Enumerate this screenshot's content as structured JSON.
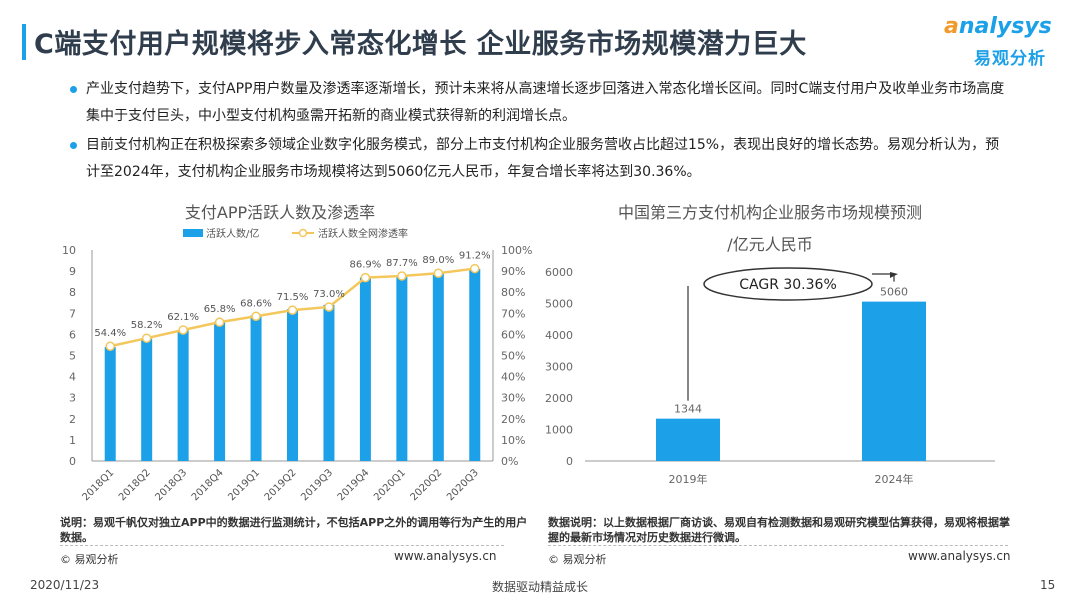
{
  "title": "C端支付用户规模将步入常态化增长 企业服务市场规模潜力巨大",
  "logo": {
    "word_prefix": "",
    "word_o": "a",
    "word_rest": "nalysys",
    "cn": "易观分析"
  },
  "bullets": [
    "产业支付趋势下，支付APP用户数量及渗透率逐渐增长，预计未来将从高速增长逐步回落进入常态化增长区间。同时C端支付用户及收单业务市场高度集中于支付巨头，中小型支付机构亟需开拓新的商业模式获得新的利润增长点。",
    "目前支付机构正在积极探索多领域企业数字化服务模式，部分上市支付机构企业服务营收占比超过15%，表现出良好的增长态势。易观分析认为，预计至2024年，支付机构企业服务市场规模将达到5060亿元人民币，年复合增长率将达到30.36%。"
  ],
  "chart_data": [
    {
      "type": "bar",
      "title": "支付APP活跃人数及渗透率",
      "categories": [
        "2018Q1",
        "2018Q2",
        "2018Q3",
        "2018Q4",
        "2019Q1",
        "2019Q2",
        "2019Q3",
        "2019Q4",
        "2020Q1",
        "2020Q2",
        "2020Q3"
      ],
      "series": [
        {
          "name": "活跃人数/亿",
          "type": "bar",
          "axis": "left",
          "values": [
            5.4,
            5.8,
            6.2,
            6.6,
            6.9,
            7.2,
            7.4,
            8.7,
            8.8,
            8.9,
            9.1
          ]
        },
        {
          "name": "活跃人数全网渗透率",
          "type": "line",
          "axis": "right",
          "values": [
            54.4,
            58.2,
            62.1,
            65.8,
            68.6,
            71.5,
            73.0,
            86.9,
            87.7,
            89.0,
            91.2
          ],
          "labels": [
            "54.4%",
            "58.2%",
            "62.1%",
            "65.8%",
            "68.6%",
            "71.5%",
            "73.0%",
            "86.9%",
            "87.7%",
            "89.0%",
            "91.2%"
          ]
        }
      ],
      "ylim": [
        0,
        10
      ],
      "yticks": [
        "0",
        "1",
        "2",
        "3",
        "4",
        "5",
        "6",
        "7",
        "8",
        "9",
        "10"
      ],
      "y2lim": [
        0,
        100
      ],
      "y2ticks": [
        "0%",
        "10%",
        "20%",
        "30%",
        "40%",
        "50%",
        "60%",
        "70%",
        "80%",
        "90%",
        "100%"
      ],
      "legend": "top",
      "colors": {
        "bar": "#1ca0e8",
        "line": "#f4c75c"
      }
    },
    {
      "type": "bar",
      "title": "中国第三方支付机构企业服务市场规模预测",
      "subtitle": "/亿元人民币",
      "categories": [
        "2019年",
        "2024年"
      ],
      "values": [
        1344,
        5060
      ],
      "value_labels": [
        "1344",
        "5060"
      ],
      "ylim": [
        0,
        6000
      ],
      "yticks": [
        "0",
        "1000",
        "2000",
        "3000",
        "4000",
        "5000",
        "6000"
      ],
      "annotation": "CAGR 30.36%",
      "colors": {
        "bar": "#1ca0e8"
      }
    }
  ],
  "notes": {
    "left": "说明：易观千帆仅对独立APP中的数据进行监测统计，不包括APP之外的调用等行为产生的用户数据。",
    "right": "数据说明：以上数据根据厂商访谈、易观自有检测数据和易观研究模型估算获得，易观将根据掌握的最新市场情况对历史数据进行微调。"
  },
  "copyright": "© 易观分析",
  "website": "www.analysys.cn",
  "footer": {
    "date": "2020/11/23",
    "center": "数据驱动精益成长",
    "page": "15"
  }
}
